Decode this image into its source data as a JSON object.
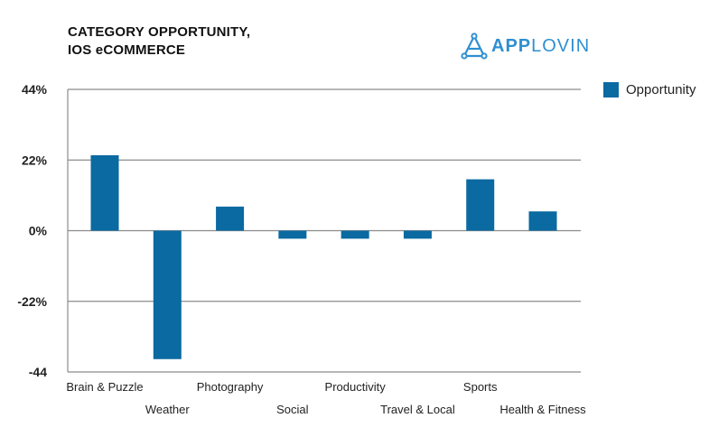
{
  "chart_data": {
    "type": "bar",
    "title_line1": "CATEGORY OPPORTUNITY,",
    "title_line2": "IOS eCOMMERCE",
    "brand": "APPLOVIN",
    "brand_bold": "APP",
    "brand_light": "LOVIN",
    "categories": [
      "Brain & Puzzle",
      "Weather",
      "Photography",
      "Social",
      "Productivity",
      "Travel & Local",
      "Sports",
      "Health & Fitness"
    ],
    "series": [
      {
        "name": "Opportunity",
        "values": [
          23.5,
          -40,
          7.5,
          -2.5,
          -2.5,
          -2.5,
          16,
          6
        ],
        "color": "#0a6aa1"
      }
    ],
    "yticks": [
      "44%",
      "22%",
      "0%",
      "-22%",
      "-44"
    ],
    "ytick_values": [
      44,
      22,
      0,
      -22,
      -44
    ],
    "ylim": [
      -44,
      44
    ],
    "grid": true,
    "legend_position": "top-right"
  }
}
